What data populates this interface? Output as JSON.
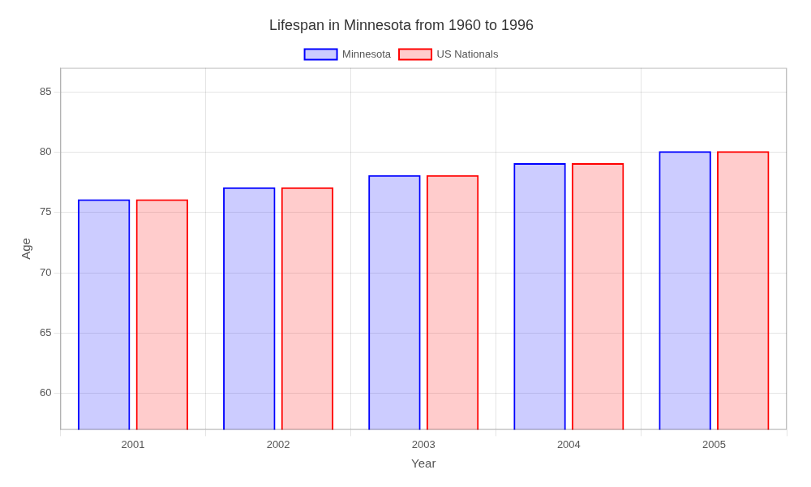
{
  "chart_data": {
    "type": "bar",
    "title": "Lifespan in Minnesota from 1960 to 1996",
    "xlabel": "Year",
    "ylabel": "Age",
    "categories": [
      "2001",
      "2002",
      "2003",
      "2004",
      "2005"
    ],
    "series": [
      {
        "name": "Minnesota",
        "color": "#0000ff",
        "values": [
          76.1,
          77.1,
          78.1,
          79.1,
          80.1
        ]
      },
      {
        "name": "US Nationals",
        "color": "#ff0000",
        "values": [
          76.1,
          77.1,
          78.1,
          79.1,
          80.1
        ]
      }
    ],
    "ylim": [
      57,
      87
    ],
    "yticks": [
      60,
      65,
      70,
      75,
      80,
      85
    ],
    "grid": true,
    "legend": "top"
  }
}
